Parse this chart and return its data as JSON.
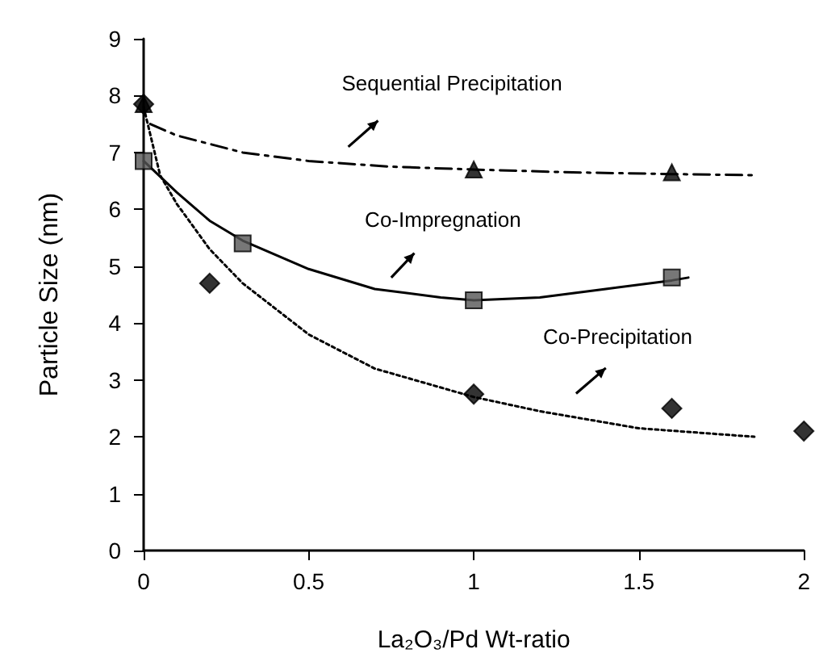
{
  "chart_data": {
    "type": "scatter",
    "xlabel": "La₂O₃/Pd Wt-ratio",
    "ylabel": "Particle Size (nm)",
    "xlim": [
      0,
      2
    ],
    "xticks": [
      0,
      0.5,
      1,
      1.5,
      2
    ],
    "ylim": [
      0,
      9
    ],
    "yticks": [
      0,
      1,
      2,
      3,
      4,
      5,
      6,
      7,
      8,
      9
    ],
    "grid": false,
    "annotations": [
      "Sequential Precipitation",
      "Co-Impregnation",
      "Co-Precipitation"
    ],
    "series": [
      {
        "marker": "triangle",
        "color": "#000000",
        "x": [
          0,
          1,
          1.6
        ],
        "values": [
          7.85,
          6.7,
          6.65
        ]
      },
      {
        "marker": "square",
        "color": "#555555",
        "x": [
          0,
          0.3,
          1,
          1.6
        ],
        "values": [
          6.85,
          5.4,
          4.4,
          4.8
        ]
      },
      {
        "marker": "diamond",
        "color": "#000000",
        "x": [
          0,
          0.2,
          1,
          1.6,
          2
        ],
        "values": [
          7.85,
          4.7,
          2.75,
          2.5,
          2.1
        ]
      },
      {
        "type": "line",
        "marker": "none",
        "line_style": "dashed",
        "color": "#000000",
        "x": [
          0.02,
          0.1,
          0.3,
          0.5,
          0.75,
          1,
          1.3,
          1.6,
          1.85
        ],
        "values": [
          7.5,
          7.3,
          7.0,
          6.85,
          6.75,
          6.7,
          6.65,
          6.62,
          6.6
        ]
      },
      {
        "type": "line",
        "marker": "none",
        "line_style": "solid",
        "color": "#000000",
        "x": [
          0,
          0.1,
          0.2,
          0.3,
          0.5,
          0.7,
          0.9,
          1,
          1.2,
          1.4,
          1.6,
          1.65
        ],
        "values": [
          6.85,
          6.3,
          5.8,
          5.45,
          4.95,
          4.6,
          4.45,
          4.4,
          4.45,
          4.6,
          4.75,
          4.8
        ]
      },
      {
        "type": "line",
        "marker": "none",
        "line_style": "dotted",
        "color": "#000000",
        "x": [
          0,
          0.05,
          0.1,
          0.2,
          0.3,
          0.5,
          0.7,
          1,
          1.2,
          1.5,
          1.85
        ],
        "values": [
          7.8,
          6.6,
          6.1,
          5.3,
          4.7,
          3.8,
          3.2,
          2.7,
          2.45,
          2.15,
          2.0
        ]
      }
    ]
  }
}
